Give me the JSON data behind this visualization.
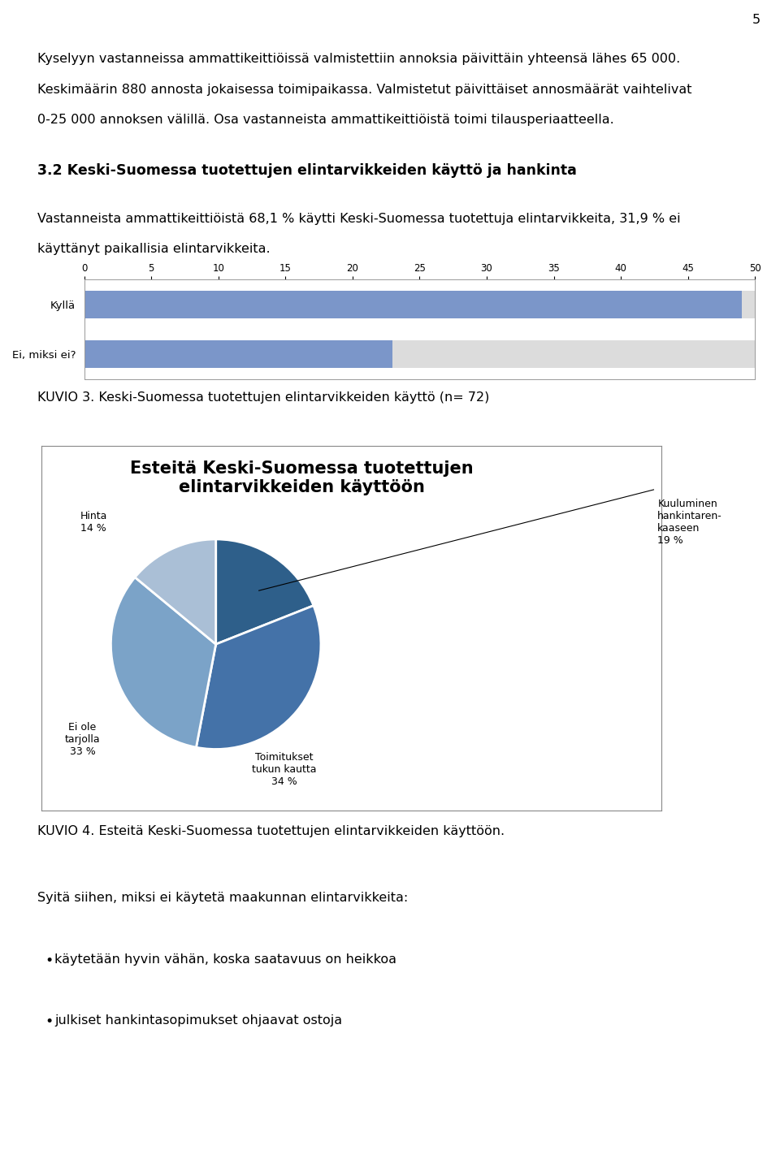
{
  "page_number": "5",
  "lines1": [
    "Kyselyyn vastanneissa ammattikeittiöissä valmistettiin annoksia päivittäin yhteensä lähes 65 000.",
    "Keskimäärin 880 annosta jokaisessa toimipaikassa. Valmistetut päivittäiset annosmäärät vaihtelivat",
    "0-25 000 annoksen välillä. Osa vastanneista ammattikeittiöistä toimi tilausperiaatteella."
  ],
  "section_title": "3.2 Keski-Suomessa tuotettujen elintarvikkeiden käyttö ja hankinta",
  "lines2": [
    "Vastanneista ammattikeittiöistä 68,1 % käytti Keski-Suomessa tuotettuja elintarvikkeita, 31,9 % ei",
    "käyttänyt paikallisia elintarvikkeita."
  ],
  "bar_categories": [
    "Kyllä",
    "Ei, miksi ei?"
  ],
  "bar_values": [
    49.0,
    23.0
  ],
  "bar_xlim": [
    0,
    50
  ],
  "bar_xticks": [
    0,
    5,
    10,
    15,
    20,
    25,
    30,
    35,
    40,
    45,
    50
  ],
  "bar_color": "#7B96C9",
  "bar_bg_color": "#DCDCDC",
  "kuvio3_caption": "KUVIO 3. Keski-Suomessa tuotettujen elintarvikkeiden käyttö (n= 72)",
  "pie_title": "Esteitä Keski-Suomessa tuotettujen\nelintarvikkeiden käyttöön",
  "pie_slices": [
    19,
    34,
    33,
    14
  ],
  "pie_colors": [
    "#2E5F8A",
    "#4472A8",
    "#7BA3C8",
    "#AABFD6"
  ],
  "pie_label_kuuluminen": "Kuuluminen\nhankintaren-\nkaaseen\n19 %",
  "pie_label_toimitukset": "Toimitukset\ntukun kautta\n34 %",
  "pie_label_eiole": "Ei ole\ntarjolla\n33 %",
  "pie_label_hinta": "Hinta\n14 %",
  "kuvio4_caption": "KUVIO 4. Esteitä Keski-Suomessa tuotettujen elintarvikkeiden käyttöön.",
  "syita_title": "Syitä siihen, miksi ei käytetä maakunnan elintarvikkeita:",
  "bullet_points": [
    "käytetään hyvin vähän, koska saatavuus on heikkoa",
    "julkiset hankintasopimukset ohjaavat ostoja"
  ],
  "background_color": "#FFFFFF",
  "text_color": "#000000",
  "font_size_body": 11.5,
  "font_size_section": 12.5,
  "font_size_pie_title": 15
}
